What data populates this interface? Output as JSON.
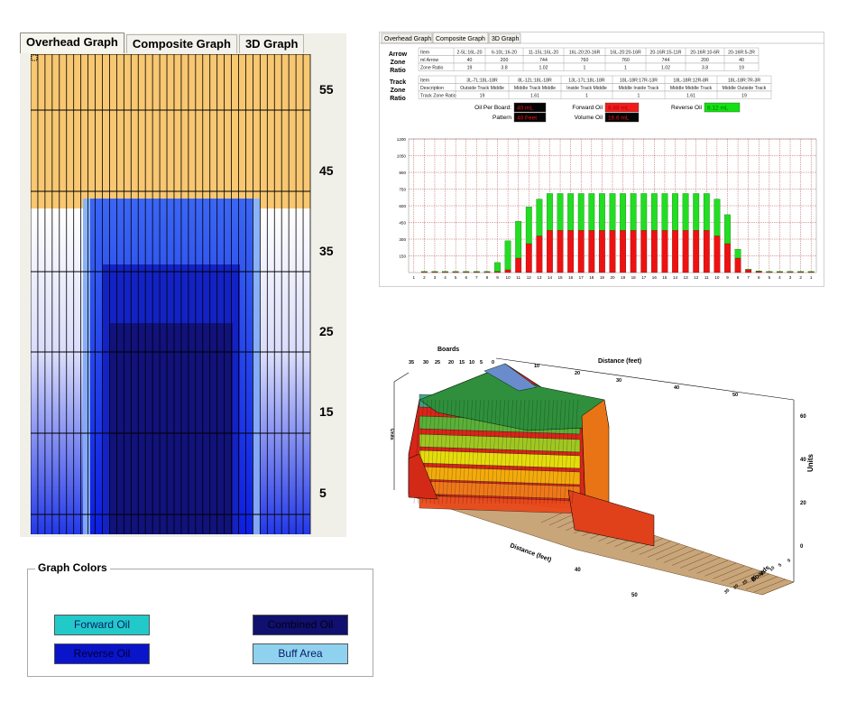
{
  "overhead": {
    "tabs": [
      "Overhead Graph",
      "Composite Graph",
      "3D Graph"
    ],
    "active_tab": 0,
    "y_labels": [
      "55",
      "45",
      "35",
      "25",
      "15",
      "5"
    ],
    "columns": 39,
    "colors": {
      "buff_orange": "#f8c772",
      "grid_line": "#000000"
    }
  },
  "composite": {
    "tabs": [
      "Overhead Graph",
      "Composite Graph",
      "3D Graph"
    ],
    "active_tab": 1,
    "arrow_label": [
      "Arrow",
      "Zone",
      "Ratio"
    ],
    "arrow_header": [
      "Item",
      "2-5L:16L-20",
      "6-10L:16-20",
      "11-15L:16L-20",
      "16L-20:20-16R",
      "16L-20:20-16R",
      "20-16R:15-11R",
      "20-16R:10-6R",
      "20-16R:5-2R"
    ],
    "arrow_rows": [
      [
        "ml Arrow",
        "40",
        "200",
        "744",
        "760",
        "760",
        "744",
        "200",
        "40"
      ],
      [
        "Zone Ratio",
        "19",
        "3.8",
        "1.02",
        "1",
        "1",
        "1.02",
        "3.8",
        "19"
      ]
    ],
    "track_label": [
      "Track",
      "Zone",
      "Ratio"
    ],
    "track_header": [
      "Item",
      "3L-7L:18L-18R",
      "8L-12L:18L-18R",
      "13L-17L:18L-18R",
      "18L-18R:17R-13R",
      "18L-18R:12R-8R",
      "18L-18R:7R-3R"
    ],
    "track_rows": [
      [
        "Description",
        "Outside Track Middle",
        "Middle Track Middle",
        "Inside Track Middle",
        "Middle Inside Track",
        "Middle Middle Track",
        "Middle Outside Track"
      ],
      [
        "Track Zone Ratio",
        "19",
        "1.61",
        "1",
        "1",
        "1.61",
        "19"
      ]
    ],
    "summary": {
      "oil_per_board_label": "Oil Per Board:",
      "oil_per_board": "40 mL",
      "forward_oil_label": "Forward Oil",
      "forward_oil": "8.48 mL",
      "reverse_oil_label": "Reverse Oil",
      "reverse_oil": "8.12 mL",
      "pattern_label": "Pattern",
      "pattern": "40 Feet",
      "volume_oil_label": "Volume Oil",
      "volume_oil": "16.6 mL"
    }
  },
  "chart_data": {
    "type": "bar",
    "categories": [
      "1",
      "2",
      "3",
      "4",
      "5",
      "6",
      "7",
      "8",
      "9",
      "10",
      "11",
      "12",
      "13",
      "14",
      "15",
      "16",
      "17",
      "18",
      "19",
      "20",
      "19",
      "18",
      "17",
      "16",
      "15",
      "14",
      "13",
      "12",
      "11",
      "10",
      "9",
      "8",
      "7",
      "6",
      "5",
      "4",
      "3",
      "2",
      "1"
    ],
    "series": [
      {
        "color": "#ee1111",
        "values": [
          0,
          5,
          5,
          5,
          5,
          5,
          5,
          5,
          10,
          25,
          130,
          260,
          330,
          380,
          380,
          380,
          380,
          380,
          380,
          380,
          380,
          380,
          380,
          380,
          380,
          380,
          380,
          380,
          380,
          330,
          260,
          130,
          25,
          10,
          5,
          5,
          5,
          5,
          5
        ]
      },
      {
        "color": "#22dd22",
        "values": [
          0,
          5,
          5,
          5,
          5,
          5,
          5,
          5,
          80,
          260,
          330,
          330,
          330,
          330,
          330,
          330,
          330,
          330,
          330,
          330,
          330,
          330,
          330,
          330,
          330,
          330,
          330,
          330,
          330,
          330,
          260,
          80,
          5,
          5,
          5,
          5,
          5,
          5,
          5
        ]
      }
    ],
    "yticks": [
      "1200",
      "1050",
      "900",
      "750",
      "600",
      "450",
      "300",
      "150"
    ],
    "ylim": [
      0,
      1200
    ],
    "grid": true
  },
  "three_d": {
    "labels": {
      "boards_top": "Boards",
      "boards_ticks": [
        "35",
        "30",
        "25",
        "20",
        "15",
        "10",
        "5",
        "0"
      ],
      "distance_top": "Distance (feet)",
      "distance_ticks_top": [
        "10",
        "20",
        "30",
        "40",
        "50"
      ],
      "units": "Units",
      "units_ticks": [
        "60",
        "40",
        "20",
        "0"
      ],
      "units_left": "Units",
      "distance_bottom": "Distance (feet)",
      "distance_ticks_bottom": [
        "40",
        "50"
      ],
      "boards_bottom": "Boards",
      "boards_bottom_ticks": [
        "0",
        "5",
        "10",
        "15",
        "20",
        "25",
        "30",
        "35"
      ]
    }
  },
  "graph_colors": {
    "title": "Graph Colors",
    "forward": "Forward Oil",
    "reverse": "Reverse Oil",
    "combined": "Combined Oil",
    "buff": "Buff Area"
  }
}
